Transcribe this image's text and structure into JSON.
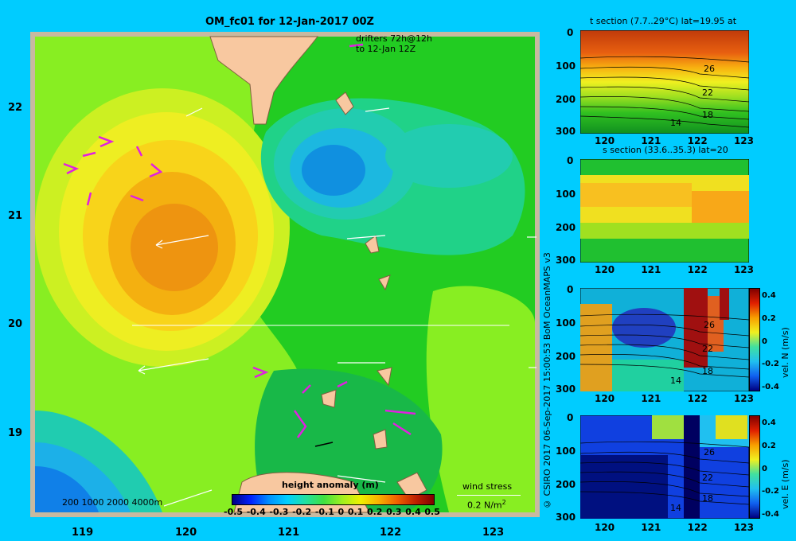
{
  "map": {
    "title": "OM_fc01 for 12-Jan-2017 00Z",
    "drifters_line1": "drifters 72h@12h",
    "drifters_line2": "to 12-Jan 12Z",
    "lon_ticks": [
      "119",
      "120",
      "121",
      "122",
      "123"
    ],
    "lat_ticks": [
      "22",
      "21",
      "20",
      "19"
    ],
    "depth_legend": [
      "200",
      "1000",
      "2000",
      "4000m"
    ],
    "colorbar_title": "height anomaly (m)",
    "colorbar_ticks": [
      "-0.5",
      "-0.4",
      "-0.3",
      "-0.2",
      "-0.1",
      "0",
      "0.1",
      "0.2",
      "0.3",
      "0.4",
      "0.5"
    ],
    "wind_label": "wind stress",
    "wind_scale_value": "0.2 N/m",
    "wind_scale_exp": "2",
    "credit": "© CSIRO 2017   06-Sep-2017 15:00:53 BoM OceanMAPS v3"
  },
  "panels": {
    "t_title": "t section (7.7..29°C) lat=19.95 at",
    "s_title": "s section (33.6..35.3) lat=20",
    "vn_label": "vel. N  (m/s)",
    "ve_label": "vel. E  (m/s)",
    "depth_ticks": [
      "0",
      "100",
      "200",
      "300"
    ],
    "lon_ticks": [
      "120",
      "121",
      "122",
      "123"
    ],
    "contour_labels": [
      "26",
      "22",
      "18",
      "14"
    ],
    "vel_ticks": [
      "0.4",
      "0.2",
      "0",
      "-0.2",
      "-0.4"
    ]
  },
  "colors": {
    "background": "#00ccff",
    "land": "#f8c8a0",
    "drifters": "#e020e0",
    "frame": "#c8b9a0"
  }
}
